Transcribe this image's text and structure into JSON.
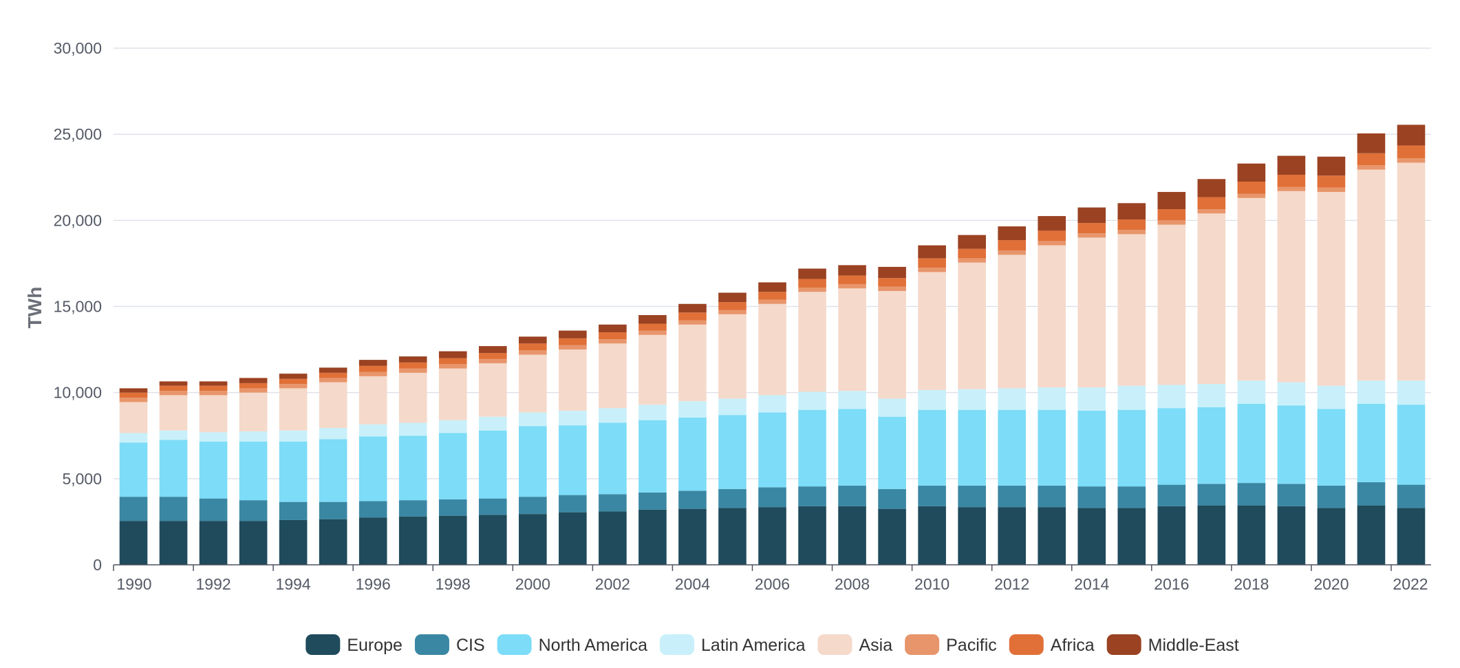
{
  "chart_data": {
    "type": "bar",
    "stacked": true,
    "title": "",
    "xlabel": "",
    "ylabel": "TWh",
    "ylim": [
      0,
      30000
    ],
    "y_ticks": [
      "0",
      "5,000",
      "10,000",
      "15,000",
      "20,000",
      "25,000",
      "30,000"
    ],
    "x_tick_labels": [
      "1990",
      "1992",
      "1994",
      "1996",
      "1998",
      "2000",
      "2002",
      "2004",
      "2006",
      "2008",
      "2010",
      "2012",
      "2014",
      "2016",
      "2018",
      "2020",
      "2022"
    ],
    "grid": true,
    "legend_position": "bottom-center",
    "categories": [
      "1990",
      "1991",
      "1992",
      "1993",
      "1994",
      "1995",
      "1996",
      "1997",
      "1998",
      "1999",
      "2000",
      "2001",
      "2002",
      "2003",
      "2004",
      "2005",
      "2006",
      "2007",
      "2008",
      "2009",
      "2010",
      "2011",
      "2012",
      "2013",
      "2014",
      "2015",
      "2016",
      "2017",
      "2018",
      "2019",
      "2020",
      "2021",
      "2022"
    ],
    "series": [
      {
        "name": "Europe",
        "color": "#1f4b5c",
        "values": [
          2550,
          2550,
          2550,
          2550,
          2600,
          2650,
          2750,
          2800,
          2850,
          2900,
          2950,
          3050,
          3100,
          3200,
          3250,
          3300,
          3350,
          3400,
          3400,
          3250,
          3400,
          3350,
          3350,
          3350,
          3300,
          3300,
          3400,
          3450,
          3450,
          3400,
          3300,
          3450,
          3300
        ]
      },
      {
        "name": "CIS",
        "color": "#3a87a3",
        "values": [
          1400,
          1400,
          1300,
          1200,
          1050,
          1000,
          950,
          950,
          950,
          950,
          1000,
          1000,
          1000,
          1000,
          1050,
          1100,
          1150,
          1150,
          1200,
          1150,
          1200,
          1250,
          1250,
          1250,
          1250,
          1250,
          1250,
          1250,
          1300,
          1300,
          1300,
          1350,
          1350
        ]
      },
      {
        "name": "North America",
        "color": "#7ddcf7",
        "values": [
          3150,
          3300,
          3300,
          3400,
          3500,
          3650,
          3750,
          3750,
          3850,
          3950,
          4100,
          4050,
          4150,
          4200,
          4250,
          4300,
          4350,
          4450,
          4450,
          4200,
          4400,
          4400,
          4400,
          4400,
          4400,
          4450,
          4450,
          4450,
          4600,
          4550,
          4450,
          4550,
          4650
        ]
      },
      {
        "name": "Latin America",
        "color": "#c9f0fa",
        "values": [
          550,
          550,
          550,
          600,
          650,
          650,
          700,
          750,
          750,
          800,
          800,
          850,
          850,
          900,
          950,
          950,
          1000,
          1050,
          1050,
          1050,
          1150,
          1200,
          1250,
          1300,
          1350,
          1400,
          1350,
          1350,
          1350,
          1350,
          1350,
          1350,
          1400
        ]
      },
      {
        "name": "Asia",
        "color": "#f5d9ca",
        "values": [
          1800,
          2050,
          2150,
          2250,
          2450,
          2650,
          2800,
          2900,
          3000,
          3100,
          3350,
          3550,
          3750,
          4050,
          4450,
          4900,
          5300,
          5800,
          5950,
          6250,
          6850,
          7350,
          7750,
          8250,
          8700,
          8800,
          9300,
          9900,
          10600,
          11100,
          11250,
          12250,
          12650
        ]
      },
      {
        "name": "Pacific",
        "color": "#e8956b",
        "values": [
          250,
          250,
          250,
          250,
          250,
          250,
          250,
          250,
          250,
          250,
          250,
          250,
          250,
          250,
          250,
          250,
          250,
          250,
          250,
          250,
          250,
          250,
          250,
          250,
          250,
          250,
          250,
          250,
          250,
          250,
          250,
          250,
          250
        ]
      },
      {
        "name": "Africa",
        "color": "#e07038",
        "values": [
          300,
          300,
          300,
          300,
          300,
          300,
          350,
          350,
          350,
          350,
          400,
          400,
          400,
          400,
          450,
          450,
          450,
          500,
          500,
          500,
          550,
          550,
          600,
          600,
          600,
          600,
          650,
          700,
          700,
          700,
          700,
          700,
          750
        ]
      },
      {
        "name": "Middle-East",
        "color": "#9a4222",
        "values": [
          250,
          250,
          250,
          300,
          300,
          300,
          350,
          350,
          400,
          400,
          400,
          450,
          450,
          500,
          500,
          550,
          550,
          600,
          600,
          650,
          750,
          800,
          800,
          850,
          900,
          950,
          1000,
          1050,
          1050,
          1100,
          1100,
          1150,
          1200
        ]
      }
    ]
  }
}
